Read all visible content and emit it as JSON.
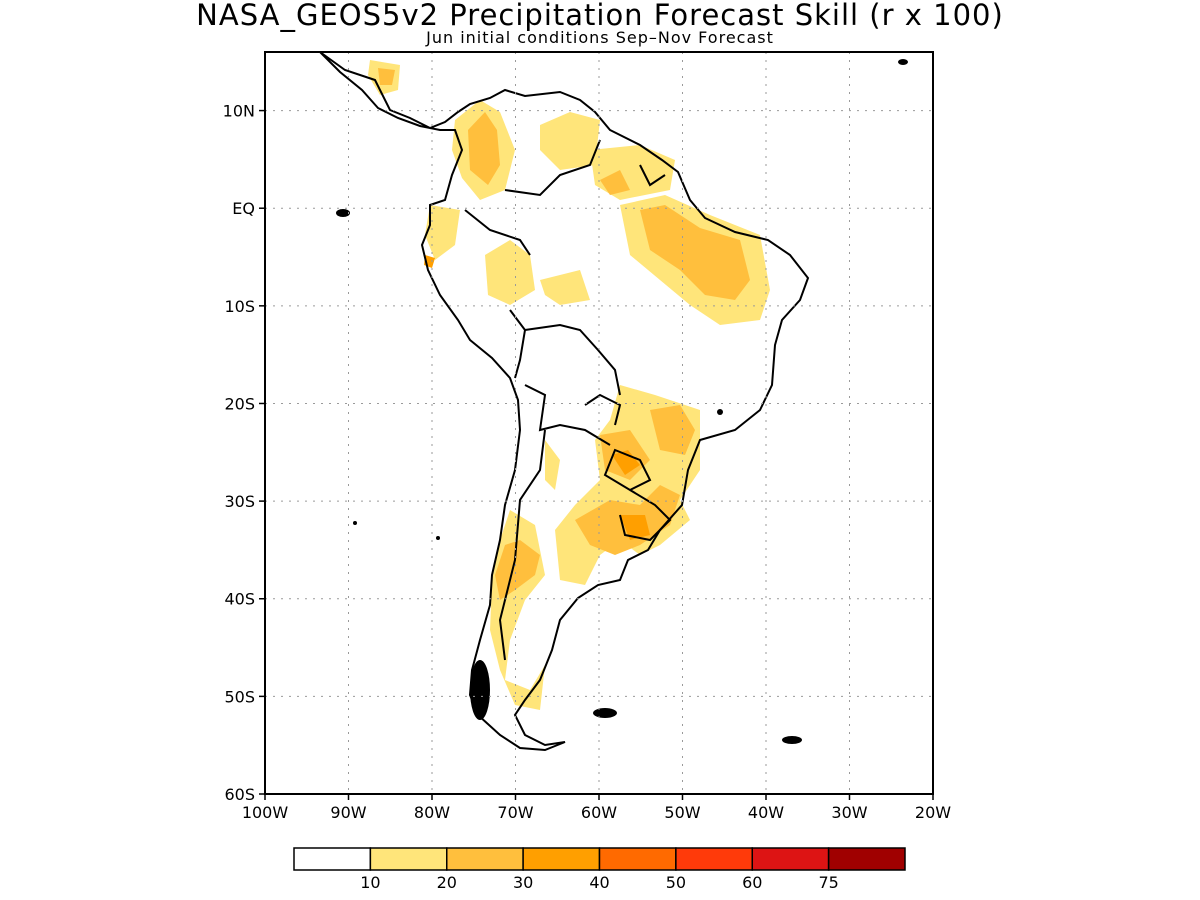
{
  "title": "NASA_GEOS5v2 Precipitation Forecast Skill (r x 100)",
  "subtitle": "Jun initial conditions  Sep–Nov Forecast",
  "map": {
    "lat_range": [
      -60,
      16
    ],
    "lon_range": [
      -100,
      -20
    ],
    "lat_ticks": [
      "10N",
      "EQ",
      "10S",
      "20S",
      "30S",
      "40S",
      "50S",
      "60S"
    ],
    "lon_ticks": [
      "100W",
      "90W",
      "80W",
      "70W",
      "60W",
      "50W",
      "40W",
      "30W",
      "20W"
    ],
    "gridlines": "dotted"
  },
  "colorbar": {
    "colors": [
      "#ffffff",
      "#ffe57a",
      "#ffbf3d",
      "#ff9f00",
      "#ff6a00",
      "#ff3a0a",
      "#dd1414",
      "#a00000"
    ],
    "labels": [
      "10",
      "20",
      "30",
      "40",
      "50",
      "60",
      "75"
    ]
  },
  "colors": {
    "land_outline": "#000000",
    "skill_10_20": "#ffe57a",
    "skill_20_30": "#ffbf3d",
    "skill_30_40": "#ff9f00"
  }
}
